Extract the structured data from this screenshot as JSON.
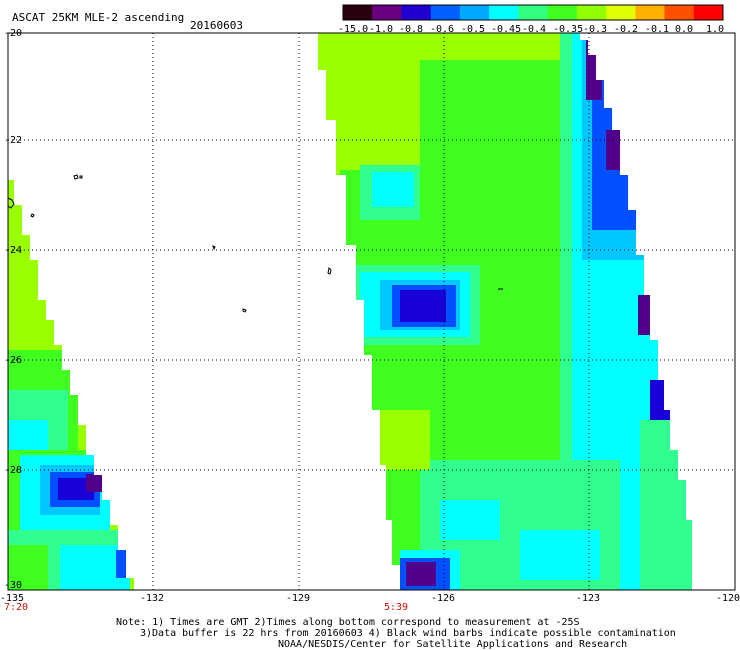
{
  "header": {
    "title": "ASCAT 25KM MLE-2 ascending",
    "date": "20160603"
  },
  "colorbar": {
    "labels": [
      "-15.0",
      "-1.0",
      "-0.8",
      "-0.6",
      "-0.5",
      "-0.45",
      "-0.4",
      "-0.35",
      "-0.3",
      "-0.2",
      "-0.1",
      "0.0",
      "1.0"
    ],
    "colors": [
      "#2a0010",
      "#6a0080",
      "#2000d0",
      "#0060ff",
      "#00a8ff",
      "#00ffff",
      "#30ff80",
      "#40ff20",
      "#90ff00",
      "#e0ff00",
      "#ffb000",
      "#ff5000",
      "#ff0000"
    ]
  },
  "axes": {
    "lat_labels": [
      "-20",
      "-22",
      "-24",
      "-26",
      "-28",
      "-30"
    ],
    "lon_labels": [
      "-135",
      "-132",
      "-129",
      "-126",
      "-123",
      "-120"
    ],
    "times": [
      "7:20",
      "5:39"
    ]
  },
  "field_colors": {
    "light_green": "#9aff00",
    "green": "#40ff20",
    "aqua_green": "#30ff90",
    "cyan": "#00ffff",
    "light_blue": "#00c8ff",
    "blue": "#0050ff",
    "dark_blue": "#1a00d8",
    "purple": "#50008a"
  },
  "notes": {
    "line1": "Note: 1) Times are GMT 2)Times along bottom correspond to measurement at -25S",
    "line2": "3)Data buffer is 22 hrs from 20160603 4) Black wind barbs indicate possible contamination",
    "line3": "NOAA/NESDIS/Center for Satellite Applications and Research"
  }
}
